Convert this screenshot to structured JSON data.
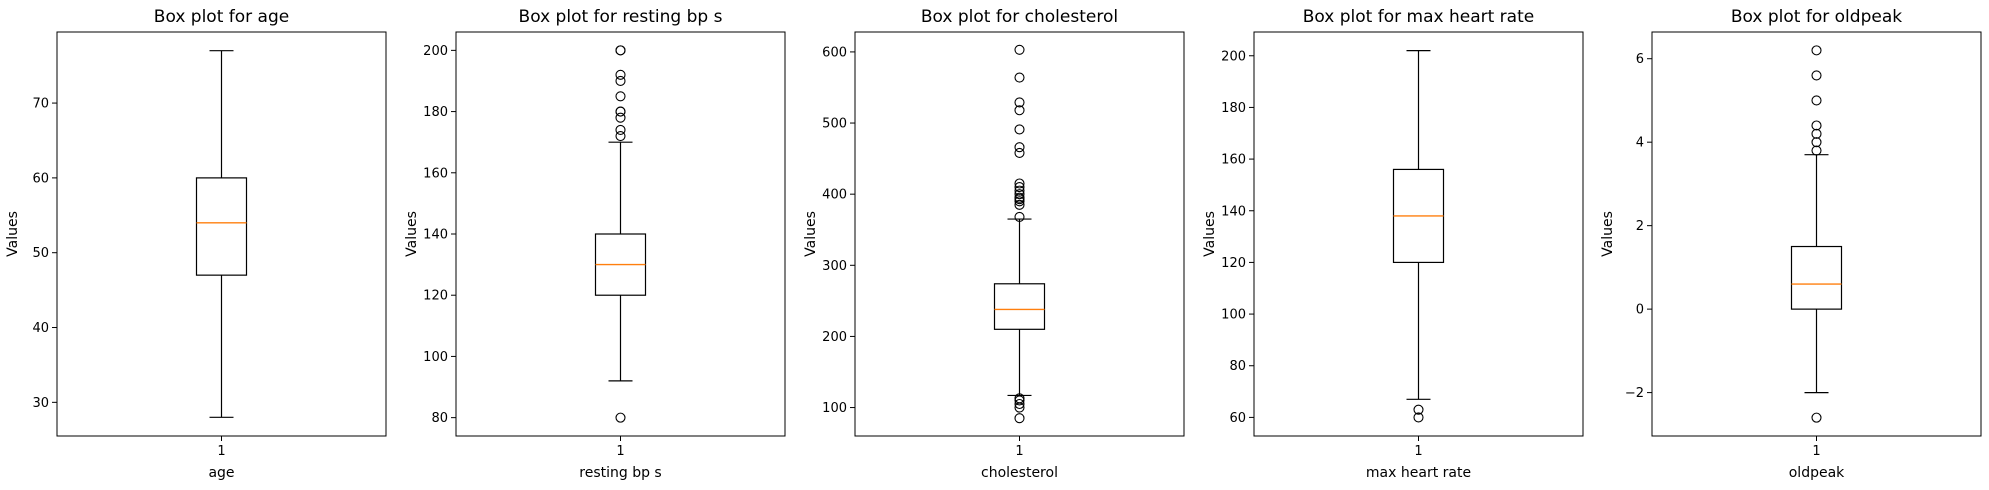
{
  "chart_data": [
    {
      "type": "box",
      "title": "Box plot for age",
      "xlabel": "age",
      "ylabel": "Values",
      "categories": [
        "1"
      ],
      "yticks": [
        30,
        40,
        50,
        60,
        70
      ],
      "ylim": [
        25.5,
        79.5
      ],
      "box": {
        "whisker_low": 28,
        "q1": 47,
        "median": 54,
        "q3": 60,
        "whisker_high": 77
      },
      "outliers": []
    },
    {
      "type": "box",
      "title": "Box plot for resting bp s",
      "xlabel": "resting bp s",
      "ylabel": "Values",
      "categories": [
        "1"
      ],
      "yticks": [
        80,
        100,
        120,
        140,
        160,
        180,
        200
      ],
      "ylim": [
        74,
        206
      ],
      "box": {
        "whisker_low": 92,
        "q1": 120,
        "median": 130,
        "q3": 140,
        "whisker_high": 170
      },
      "outliers": [
        80,
        172,
        174,
        178,
        180,
        180,
        185,
        190,
        192,
        200,
        200
      ]
    },
    {
      "type": "box",
      "title": "Box plot for cholesterol",
      "xlabel": "cholesterol",
      "ylabel": "Values",
      "categories": [
        "1"
      ],
      "yticks": [
        100,
        200,
        300,
        400,
        500,
        600
      ],
      "ylim": [
        60,
        628
      ],
      "box": {
        "whisker_low": 117,
        "q1": 210,
        "median": 238,
        "q3": 274,
        "whisker_high": 365
      },
      "outliers": [
        85,
        100,
        105,
        110,
        113,
        368,
        385,
        390,
        393,
        395,
        400,
        405,
        410,
        415,
        458,
        466,
        491,
        518,
        529,
        564,
        603
      ]
    },
    {
      "type": "box",
      "title": "Box plot for max heart rate",
      "xlabel": "max heart rate",
      "ylabel": "Values",
      "categories": [
        "1"
      ],
      "yticks": [
        60,
        80,
        100,
        120,
        140,
        160,
        180,
        200
      ],
      "ylim": [
        52.8,
        209.2
      ],
      "box": {
        "whisker_low": 67,
        "q1": 120,
        "median": 138,
        "q3": 156,
        "whisker_high": 202
      },
      "outliers": [
        60,
        63
      ]
    },
    {
      "type": "box",
      "title": "Box plot for oldpeak",
      "xlabel": "oldpeak",
      "ylabel": "Values",
      "categories": [
        "1"
      ],
      "yticks": [
        -2,
        0,
        2,
        4,
        6
      ],
      "ylim": [
        -3.04,
        6.64
      ],
      "box": {
        "whisker_low": -2.0,
        "q1": 0.0,
        "median": 0.6,
        "q3": 1.5,
        "whisker_high": 3.7
      },
      "outliers": [
        -2.6,
        3.8,
        4.0,
        4.2,
        4.4,
        5.0,
        5.6,
        6.2
      ]
    }
  ],
  "colors": {
    "box_line": "#000000",
    "median": "#ff7f0e",
    "background": "#ffffff"
  }
}
